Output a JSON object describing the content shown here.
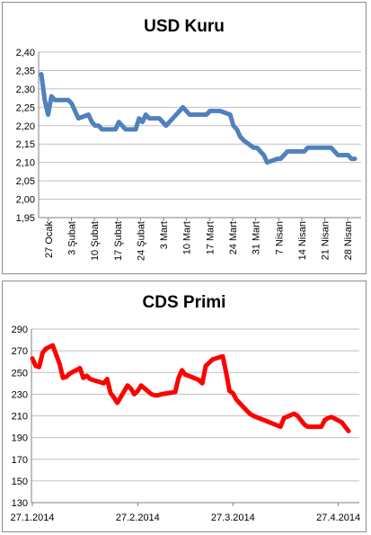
{
  "chart_data": [
    {
      "type": "line",
      "title": "USD Kuru",
      "xlabel": "",
      "ylabel": "",
      "ylim": [
        1.95,
        2.4
      ],
      "yticks": [
        "1,95",
        "2,00",
        "2,05",
        "2,10",
        "2,15",
        "2,20",
        "2,25",
        "2,30",
        "2,35",
        "2,40"
      ],
      "xtick_labels": [
        "27 Ocak",
        "3 Şubat",
        "10 Şubat",
        "17 Şubat",
        "24 Şubat",
        "3 Mart",
        "10 Mart",
        "17 Mart",
        "24 Mart",
        "31 Mart",
        "7 Nisan",
        "14 Nisan",
        "21 Nisan",
        "28 Nisan"
      ],
      "grid": true,
      "legend": "none",
      "color": "#4f81bd",
      "series": [
        {
          "x": [
            "27.1",
            "28.1",
            "29.1",
            "30.1",
            "31.1",
            "3.2",
            "4.2",
            "5.2",
            "6.2",
            "7.2",
            "10.2",
            "11.2",
            "12.2",
            "13.2",
            "14.2",
            "17.2",
            "18.2",
            "19.2",
            "20.2",
            "21.2",
            "24.2",
            "25.2",
            "26.2",
            "27.2",
            "28.2",
            "3.3",
            "4.3",
            "5.3",
            "6.3",
            "7.3",
            "10.3",
            "11.3",
            "12.3",
            "13.3",
            "14.3",
            "17.3",
            "18.3",
            "19.3",
            "20.3",
            "21.3",
            "24.3",
            "25.3",
            "26.3",
            "27.3",
            "28.3",
            "31.3",
            "1.4",
            "2.4",
            "3.4",
            "4.4",
            "7.4",
            "8.4",
            "9.4",
            "10.4",
            "11.4",
            "14.4",
            "15.4",
            "16.4",
            "17.4",
            "18.4",
            "21.4",
            "22.4",
            "23.4",
            "24.4",
            "25.4",
            "28.4",
            "29.4",
            "30.4"
          ],
          "values": [
            2.34,
            2.27,
            2.23,
            2.28,
            2.27,
            2.27,
            2.27,
            2.26,
            2.24,
            2.22,
            2.23,
            2.21,
            2.2,
            2.2,
            2.19,
            2.19,
            2.19,
            2.21,
            2.2,
            2.19,
            2.19,
            2.22,
            2.21,
            2.23,
            2.22,
            2.22,
            2.21,
            2.2,
            2.21,
            2.22,
            2.25,
            2.24,
            2.23,
            2.23,
            2.23,
            2.23,
            2.24,
            2.24,
            2.24,
            2.24,
            2.23,
            2.2,
            2.19,
            2.17,
            2.16,
            2.14,
            2.14,
            2.13,
            2.12,
            2.1,
            2.11,
            2.11,
            2.12,
            2.13,
            2.13,
            2.13,
            2.13,
            2.14,
            2.14,
            2.14,
            2.14,
            2.14,
            2.14,
            2.13,
            2.12,
            2.12,
            2.11,
            2.11
          ]
        }
      ]
    },
    {
      "type": "line",
      "title": "CDS Primi",
      "xlabel": "",
      "ylabel": "",
      "ylim": [
        130,
        290
      ],
      "yticks": [
        "130",
        "150",
        "170",
        "190",
        "210",
        "230",
        "250",
        "270",
        "290"
      ],
      "xtick_labels": [
        "27.1.2014",
        "27.2.2014",
        "27.3.2014",
        "27.4.2014"
      ],
      "grid": true,
      "legend": "none",
      "color": "#ff0000",
      "series": [
        {
          "x": [
            "27.1.2014",
            "28.1.2014",
            "29.1.2014",
            "30.1.2014",
            "31.1.2014",
            "2.2.2014",
            "4.2.2014",
            "5.2.2014",
            "6.2.2014",
            "7.2.2014",
            "10.2.2014",
            "11.2.2014",
            "12.2.2014",
            "13.2.2014",
            "14.2.2014",
            "17.2.2014",
            "18.2.2014",
            "19.2.2014",
            "20.2.2014",
            "21.2.2014",
            "24.2.2014",
            "25.2.2014",
            "26.2.2014",
            "27.2.2014",
            "28.2.2014",
            "3.3.2014",
            "4.3.2014",
            "5.3.2014",
            "6.3.2014",
            "10.3.2014",
            "11.3.2014",
            "12.3.2014",
            "13.3.2014",
            "14.3.2014",
            "17.3.2014",
            "18.3.2014",
            "19.3.2014",
            "20.3.2014",
            "21.3.2014",
            "24.3.2014",
            "25.3.2014",
            "26.3.2014",
            "27.3.2014",
            "28.3.2014",
            "31.3.2014",
            "1.4.2014",
            "2.4.2014",
            "10.4.2014",
            "11.4.2014",
            "14.4.2014",
            "15.4.2014",
            "16.4.2014",
            "17.4.2014",
            "18.4.2014",
            "21.4.2014",
            "22.4.2014",
            "23.4.2014",
            "24.4.2014",
            "25.4.2014",
            "28.4.2014",
            "29.4.2014",
            "30.4.2014"
          ],
          "values": [
            263,
            256,
            255,
            268,
            272,
            275,
            258,
            245,
            246,
            249,
            254,
            245,
            247,
            244,
            243,
            240,
            244,
            231,
            227,
            222,
            238,
            235,
            230,
            233,
            238,
            230,
            229,
            229,
            230,
            232,
            245,
            252,
            248,
            247,
            243,
            240,
            256,
            259,
            262,
            265,
            250,
            233,
            231,
            225,
            215,
            212,
            210,
            200,
            208,
            212,
            210,
            206,
            202,
            200,
            200,
            200,
            206,
            208,
            209,
            204,
            200,
            196
          ]
        }
      ]
    }
  ]
}
